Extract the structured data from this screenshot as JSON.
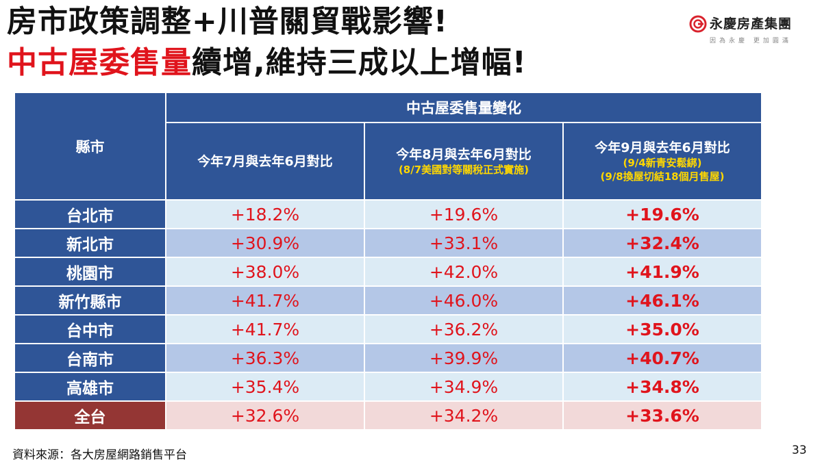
{
  "title": {
    "line1": "房市政策調整+川普關貿戰影響!",
    "line2_highlight": "中古屋委售量",
    "line2_rest": "續增,維持三成以上增幅!"
  },
  "logo": {
    "name": "永慶房產集團",
    "tagline": "因為永慶 更加圓滿"
  },
  "table": {
    "city_header": "縣市",
    "group_header": "中古屋委售量變化",
    "columns": [
      {
        "label": "今年7月與去年6月對比",
        "notes": []
      },
      {
        "label": "今年8月與去年6月對比",
        "notes": [
          "(8/7美國對等關稅正式實施)"
        ]
      },
      {
        "label": "今年9月與去年6月對比",
        "notes": [
          "(9/4新青安鬆綁)",
          "(9/8換屋切結18個月售屋)"
        ]
      }
    ],
    "rows": [
      {
        "city": "台北市",
        "values": [
          "+18.2%",
          "+19.6%",
          "+19.6%"
        ]
      },
      {
        "city": "新北市",
        "values": [
          "+30.9%",
          "+33.1%",
          "+32.4%"
        ]
      },
      {
        "city": "桃園市",
        "values": [
          "+38.0%",
          "+42.0%",
          "+41.9%"
        ]
      },
      {
        "city": "新竹縣市",
        "values": [
          "+41.7%",
          "+46.0%",
          "+46.1%"
        ]
      },
      {
        "city": "台中市",
        "values": [
          "+41.7%",
          "+36.2%",
          "+35.0%"
        ]
      },
      {
        "city": "台南市",
        "values": [
          "+36.3%",
          "+39.9%",
          "+40.7%"
        ]
      },
      {
        "city": "高雄市",
        "values": [
          "+35.4%",
          "+34.9%",
          "+34.8%"
        ]
      },
      {
        "city": "全台",
        "values": [
          "+32.6%",
          "+34.2%",
          "+33.6%"
        ]
      }
    ]
  },
  "source": "資料來源：各大房屋網路銷售平台",
  "page_number": "33",
  "colors": {
    "header_blue": "#2f5597",
    "total_red": "#943634",
    "value_red": "#e0141c",
    "note_yellow": "#ffd700"
  }
}
